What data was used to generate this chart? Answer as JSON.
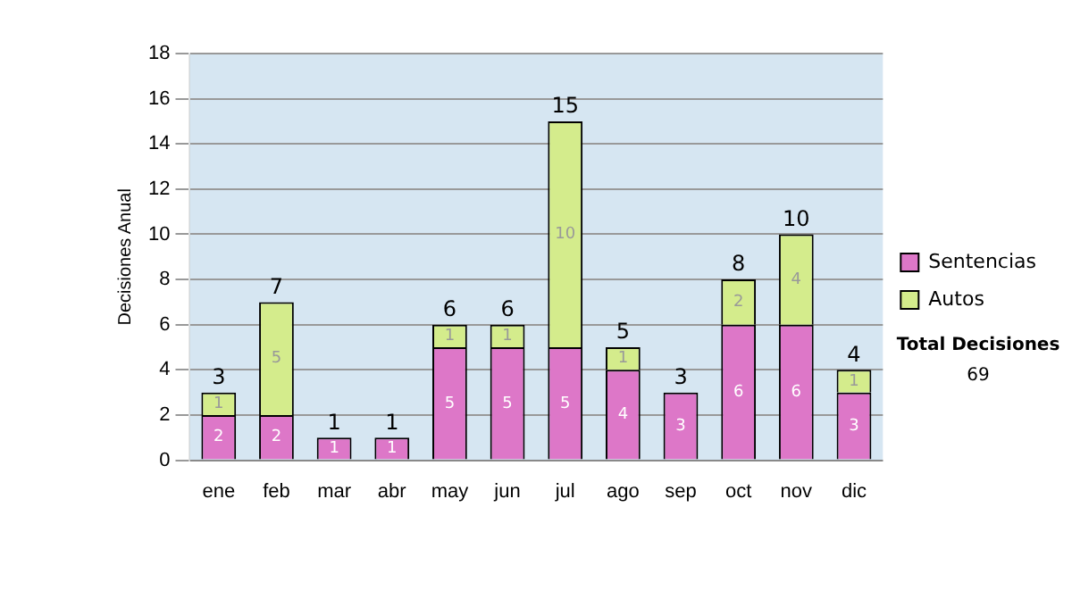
{
  "chart_data": {
    "type": "bar",
    "stacked": true,
    "ylabel": "Decisiones Anual",
    "categories": [
      "ene",
      "feb",
      "mar",
      "abr",
      "may",
      "jun",
      "jul",
      "ago",
      "sep",
      "oct",
      "nov",
      "dic"
    ],
    "series": [
      {
        "name": "Sentencias",
        "color": "#dd77c8",
        "values": [
          2,
          2,
          1,
          1,
          5,
          5,
          5,
          4,
          3,
          6,
          6,
          3
        ]
      },
      {
        "name": "Autos",
        "color": "#d4ec8c",
        "values": [
          1,
          5,
          null,
          null,
          1,
          1,
          10,
          1,
          null,
          2,
          4,
          1
        ]
      }
    ],
    "totals": [
      "3",
      "7",
      "1",
      "1",
      "6",
      "6",
      "15",
      "5",
      "3",
      "8",
      "10",
      "4"
    ],
    "data_labels": true,
    "ylim": [
      0,
      18
    ],
    "yticks": [
      0,
      2,
      4,
      6,
      8,
      10,
      12,
      14,
      16,
      18
    ],
    "grid": "y",
    "legend": "right",
    "annotations": [
      "Total Decisiones",
      "69"
    ]
  }
}
